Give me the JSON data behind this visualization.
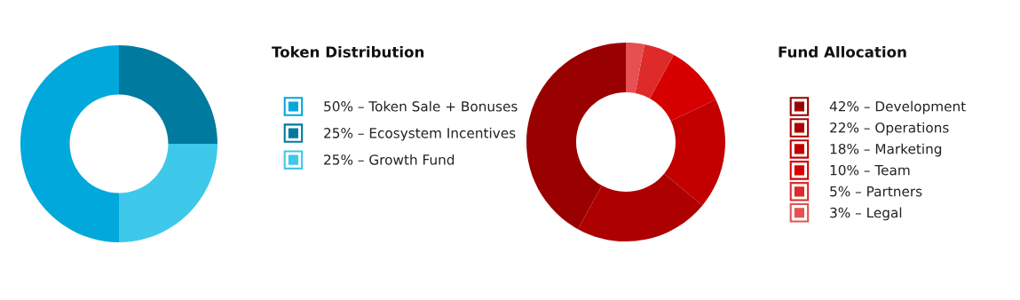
{
  "chart_data": [
    {
      "type": "donut",
      "title": "Token Distribution",
      "categories": [
        "50% – Token Sale + Bonuses",
        "25% – Ecosystem Incentives",
        "25% – Growth Fund"
      ],
      "values": [
        50,
        25,
        25
      ],
      "colors": [
        "#00a8dc",
        "#007a9e",
        "#3ec8ea"
      ],
      "legend": "right"
    },
    {
      "type": "donut",
      "title": "Fund Allocation",
      "categories": [
        "42% – Development",
        "22% – Operations",
        "18% – Marketing",
        "10% – Team",
        "5% – Partners",
        "3% – Legal"
      ],
      "values": [
        42,
        22,
        18,
        10,
        5,
        3
      ],
      "colors": [
        "#990000",
        "#ad0000",
        "#c20000",
        "#d60000",
        "#df2a2a",
        "#e65050"
      ],
      "legend": "right"
    }
  ]
}
